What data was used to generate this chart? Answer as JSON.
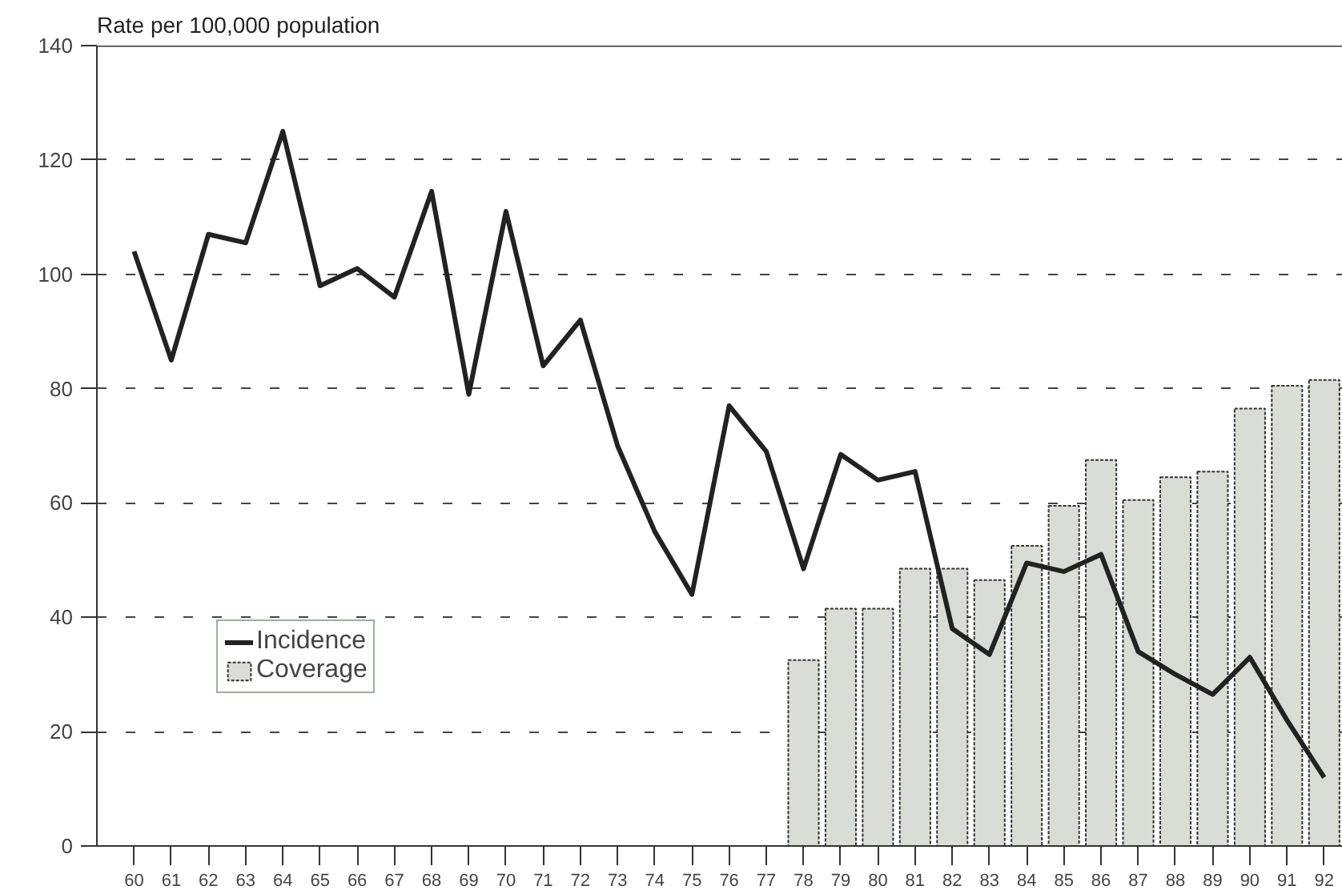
{
  "chart_data": {
    "type": "bar",
    "ylabel": "Rate per 100,000 population",
    "categories": [
      "60",
      "61",
      "62",
      "63",
      "64",
      "65",
      "66",
      "67",
      "68",
      "69",
      "70",
      "71",
      "72",
      "73",
      "74",
      "75",
      "76",
      "77",
      "78",
      "79",
      "80",
      "81",
      "82",
      "83",
      "84",
      "85",
      "86",
      "87",
      "88",
      "89",
      "90",
      "91",
      "92"
    ],
    "series": [
      {
        "name": "Coverage",
        "color": "#d9ddd5",
        "values": [
          null,
          null,
          null,
          null,
          null,
          null,
          null,
          null,
          null,
          null,
          null,
          null,
          null,
          null,
          null,
          null,
          null,
          null,
          32.5,
          41.5,
          41.5,
          48.5,
          48.5,
          46.5,
          52.5,
          59.5,
          67.5,
          60.5,
          64.5,
          65.5,
          76.5,
          80.5,
          81.5
        ]
      },
      {
        "name": "Incidence",
        "type": "line",
        "color": "#222222",
        "values": [
          104,
          85,
          107,
          105.5,
          125,
          98,
          101,
          96,
          114.5,
          79,
          111,
          84,
          92,
          70,
          55,
          44,
          77,
          69,
          48.5,
          68.5,
          64,
          65.5,
          38,
          33.5,
          49.5,
          48,
          51,
          34,
          30,
          26.5,
          33,
          22,
          12
        ]
      }
    ],
    "ylim": [
      0,
      140
    ],
    "yticks": [
      0,
      20,
      40,
      60,
      80,
      100,
      120,
      140
    ],
    "grid": "y",
    "legend": "bottom left",
    "line_style": "solid",
    "marker": "none"
  }
}
